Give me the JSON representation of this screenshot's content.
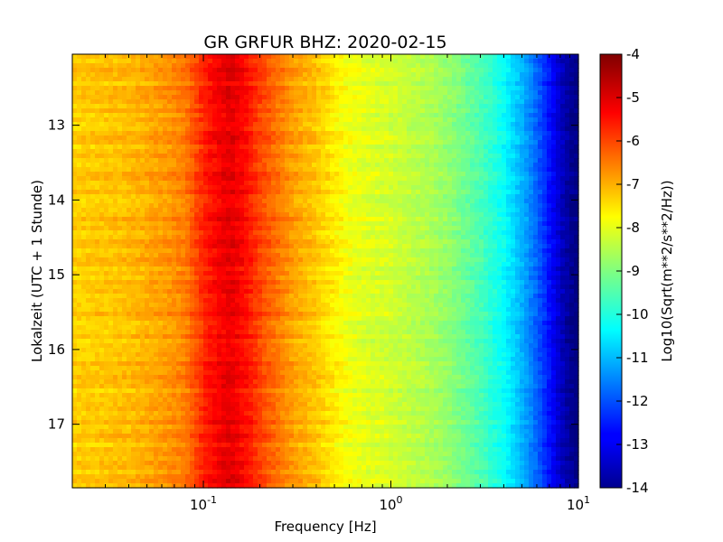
{
  "chart_data": {
    "type": "heatmap",
    "title": "GR GRFUR BHZ: 2020-02-15",
    "xlabel": "Frequency [Hz]",
    "ylabel": "Lokalzeit (UTC + 1 Stunde)",
    "colorbar_label": "Log10(Sqrt(m**2/s**2/Hz))",
    "x_scale": "log",
    "xlim": [
      0.02,
      10
    ],
    "ylim": [
      12.05,
      17.85
    ],
    "y_inverted": true,
    "x_ticks": [
      {
        "value": 0.1,
        "base": "10",
        "exp": "-1"
      },
      {
        "value": 1,
        "base": "10",
        "exp": "0"
      },
      {
        "value": 10,
        "base": "10",
        "exp": "1"
      }
    ],
    "y_ticks": [
      {
        "value": 13,
        "label": "13"
      },
      {
        "value": 14,
        "label": "14"
      },
      {
        "value": 15,
        "label": "15"
      },
      {
        "value": 16,
        "label": "16"
      },
      {
        "value": 17,
        "label": "17"
      }
    ],
    "color_range": [
      -14,
      -4
    ],
    "colormap": "jet",
    "colorbar_ticks": [
      "-4",
      "-5",
      "-6",
      "-7",
      "-8",
      "-9",
      "-10",
      "-11",
      "-12",
      "-13",
      "-14"
    ],
    "colorbar_tick_values": [
      -4,
      -5,
      -6,
      -7,
      -8,
      -9,
      -10,
      -11,
      -12,
      -13,
      -14
    ],
    "spectrum_profile": {
      "frequency_hz": [
        0.02,
        0.04,
        0.06,
        0.08,
        0.1,
        0.12,
        0.14,
        0.17,
        0.2,
        0.25,
        0.3,
        0.4,
        0.5,
        0.6,
        0.8,
        1.0,
        1.5,
        2.0,
        3.0,
        4.0,
        5.0,
        6.0,
        7.0,
        8.0,
        9.0,
        10.0
      ],
      "log10_amplitude": [
        -7.3,
        -7.1,
        -6.8,
        -6.5,
        -5.6,
        -5.2,
        -5.0,
        -5.4,
        -5.9,
        -6.4,
        -6.8,
        -7.2,
        -7.6,
        -7.9,
        -8.1,
        -8.2,
        -8.5,
        -8.8,
        -9.5,
        -10.2,
        -11.0,
        -11.8,
        -12.6,
        -13.3,
        -13.8,
        -14.0
      ]
    }
  }
}
